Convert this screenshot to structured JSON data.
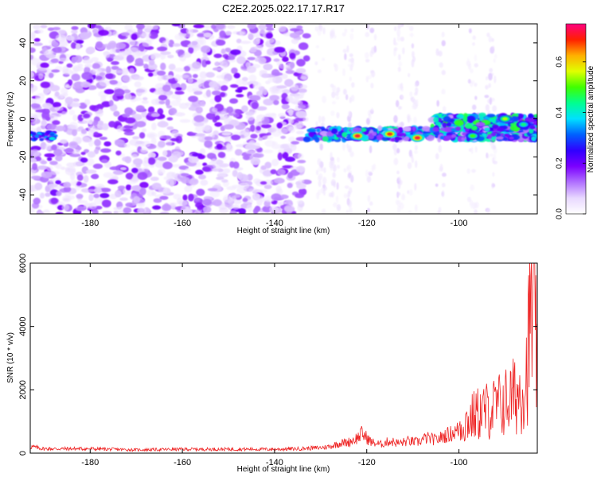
{
  "title": "C2E2.2025.022.17.17.R17",
  "chart_data": [
    {
      "type": "heatmap",
      "xlabel": "Height of straight line (km)",
      "ylabel": "Frequency (Hz)",
      "xlim": [
        -193,
        -83
      ],
      "ylim": [
        -50,
        50
      ],
      "xticks": [
        -180,
        -160,
        -140,
        -120,
        -100
      ],
      "yticks": [
        -40,
        -20,
        0,
        20,
        40
      ],
      "grid": false,
      "colorbar": {
        "label": "Normalized spectral amplitude",
        "range": [
          0.0,
          0.75
        ],
        "ticks": [
          0.0,
          0.2,
          0.4,
          0.6
        ],
        "tick_labels": [
          "0.0",
          "0.2",
          "0.4",
          "0.6"
        ],
        "colormap": [
          "#ffffff",
          "#e8d8ff",
          "#b070ff",
          "#7b00ff",
          "#3000ff",
          "#0060ff",
          "#00e0ff",
          "#00ff90",
          "#40ff00",
          "#e0ff00",
          "#ffb000",
          "#ff2000",
          "#ff0080"
        ]
      },
      "features": [
        {
          "x_range": [
            -193,
            -133
          ],
          "y_range": [
            -50,
            50
          ],
          "amplitude": 0.15,
          "description_level": "noise"
        },
        {
          "x_range": [
            -133,
            -83
          ],
          "y_center": -8,
          "y_width": 6,
          "amplitude": 0.45
        },
        {
          "x_range": [
            -106,
            -83
          ],
          "y_center": -2,
          "y_width": 8,
          "amplitude": 0.5
        }
      ],
      "peaks": [
        {
          "x": -122,
          "y": -9,
          "amplitude": 0.72
        },
        {
          "x": -115,
          "y": -8,
          "amplitude": 0.7
        },
        {
          "x": -109,
          "y": -10,
          "amplitude": 0.72
        },
        {
          "x": -90,
          "y": 0,
          "amplitude": 0.55
        },
        {
          "x": -86,
          "y": -3,
          "amplitude": 0.45
        },
        {
          "x": -97,
          "y": -9,
          "amplitude": 0.5
        }
      ]
    },
    {
      "type": "line",
      "xlabel": "Height of straight line (km)",
      "ylabel": "SNR (10 * v/v)",
      "xlim": [
        -193,
        -83
      ],
      "ylim": [
        0,
        6000
      ],
      "xticks": [
        -180,
        -160,
        -140,
        -120,
        -100
      ],
      "yticks": [
        0,
        2000,
        4000,
        6000
      ],
      "color": "#ee2222",
      "series": [
        {
          "x": [
            -193,
            -190,
            -180,
            -170,
            -160,
            -150,
            -140,
            -135,
            -130,
            -128,
            -126,
            -124,
            -122,
            -121,
            -119,
            -117,
            -115,
            -113,
            -111,
            -109,
            -107,
            -105,
            -103,
            -101,
            -99,
            -97,
            -95,
            -93,
            -91,
            -89,
            -87,
            -85.5,
            -84.5,
            -84,
            -83
          ],
          "values": [
            300,
            200,
            200,
            150,
            180,
            180,
            180,
            200,
            250,
            300,
            450,
            500,
            700,
            900,
            500,
            400,
            550,
            450,
            550,
            500,
            700,
            600,
            800,
            950,
            1200,
            1500,
            1700,
            1800,
            2000,
            2200,
            2500,
            3000,
            5500,
            6000,
            3500
          ]
        }
      ]
    }
  ]
}
